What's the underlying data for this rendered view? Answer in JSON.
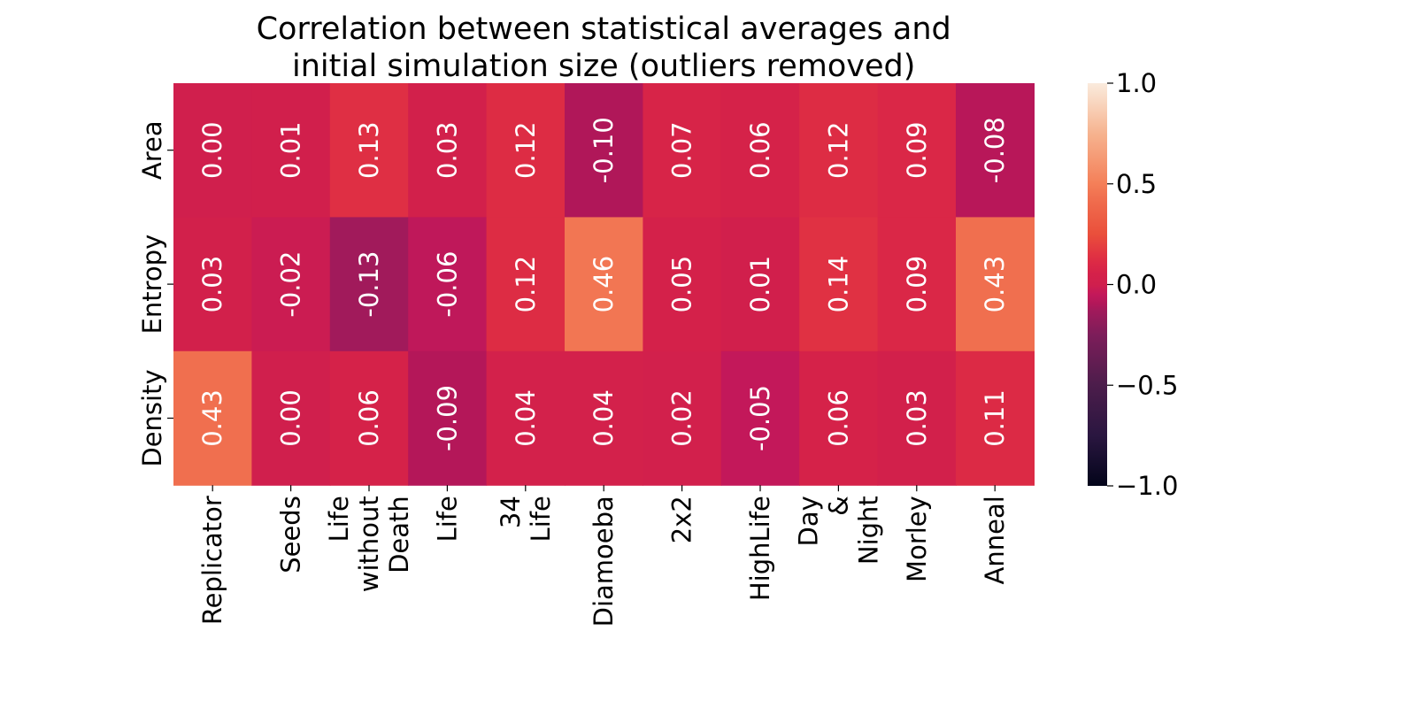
{
  "chart_data": {
    "type": "heatmap",
    "title": "Correlation between statistical averages and initial simulation size (outliers removed)",
    "title_lines": [
      "Correlation between statistical averages and",
      "initial simulation size (outliers removed)"
    ],
    "rows": [
      "Area",
      "Entropy",
      "Density"
    ],
    "columns": [
      [
        "Replicator"
      ],
      [
        "Seeds"
      ],
      [
        "Life",
        "without",
        "Death"
      ],
      [
        "Life"
      ],
      [
        "34",
        "Life"
      ],
      [
        "Diamoeba"
      ],
      [
        "2x2"
      ],
      [
        "HighLife"
      ],
      [
        "Day",
        "&",
        "Night"
      ],
      [
        "Morley"
      ],
      [
        "Anneal"
      ]
    ],
    "values": [
      [
        0.0,
        0.01,
        0.13,
        0.03,
        0.12,
        -0.1,
        0.07,
        0.06,
        0.12,
        0.09,
        -0.08
      ],
      [
        0.03,
        -0.02,
        -0.13,
        -0.06,
        0.12,
        0.46,
        0.05,
        0.01,
        0.14,
        0.09,
        0.43
      ],
      [
        0.43,
        0.0,
        0.06,
        -0.09,
        0.04,
        0.04,
        0.02,
        -0.05,
        0.06,
        0.03,
        0.11
      ]
    ],
    "colorbar": {
      "min": -1.0,
      "max": 1.0,
      "ticks": [
        1.0,
        0.5,
        0.0,
        -0.5,
        -1.0
      ],
      "tick_labels": [
        "1.0",
        "0.5",
        "0.0",
        "−0.5",
        "−1.0"
      ],
      "colormap": "rocket",
      "stops": [
        {
          "v": -1.0,
          "color": "#03051a"
        },
        {
          "v": -0.75,
          "color": "#2a1640"
        },
        {
          "v": -0.5,
          "color": "#4c1d4b"
        },
        {
          "v": -0.25,
          "color": "#7d1d5a"
        },
        {
          "v": -0.13,
          "color": "#a11a5b"
        },
        {
          "v": -0.1,
          "color": "#b01759"
        },
        {
          "v": -0.05,
          "color": "#c3185a"
        },
        {
          "v": 0.0,
          "color": "#d01f4d"
        },
        {
          "v": 0.05,
          "color": "#d4214a"
        },
        {
          "v": 0.1,
          "color": "#db2846"
        },
        {
          "v": 0.15,
          "color": "#e13342"
        },
        {
          "v": 0.25,
          "color": "#ea4f3b"
        },
        {
          "v": 0.43,
          "color": "#f06f4f"
        },
        {
          "v": 0.5,
          "color": "#f47f58"
        },
        {
          "v": 0.75,
          "color": "#f6b38f"
        },
        {
          "v": 1.0,
          "color": "#faebdd"
        }
      ]
    },
    "value_format": "2 decimals",
    "annotation_color": "#ffffff"
  }
}
